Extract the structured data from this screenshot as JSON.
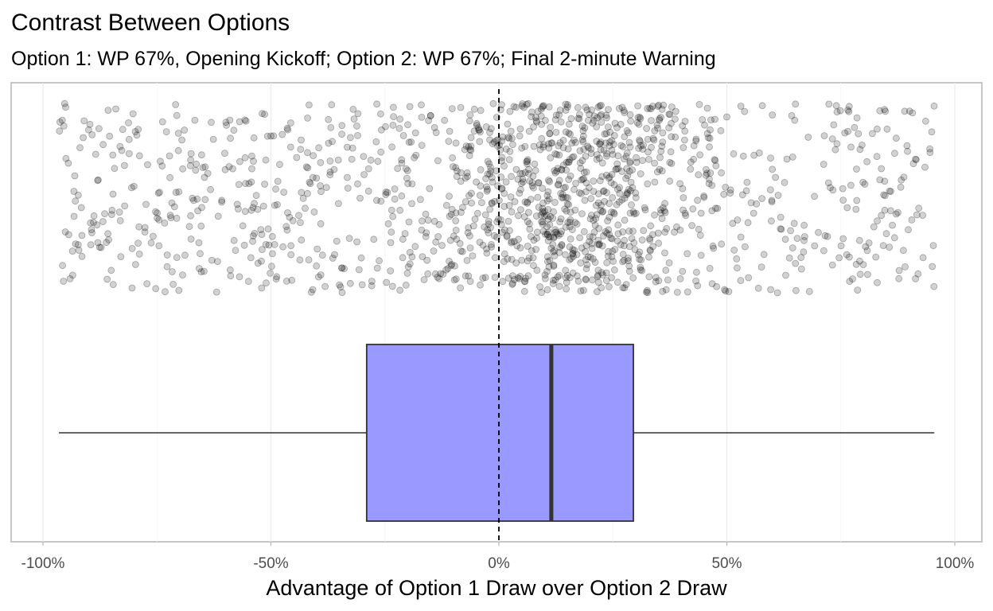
{
  "chart_data": {
    "type": "boxplot",
    "title": "Contrast Between Options",
    "subtitle": "Option 1: WP 67%, Opening Kickoff; Option 2: WP 67%; Final 2-minute Warning",
    "xlabel": "Advantage of Option 1 Draw over Option 2 Draw",
    "ylabel": "",
    "xlim": [
      -1.05,
      1.05
    ],
    "x_ticks": [
      -1.0,
      -0.5,
      0.0,
      0.5,
      1.0
    ],
    "x_tick_labels": [
      "-100%",
      "-50%",
      "0%",
      "50%",
      "100%"
    ],
    "reference_line": {
      "x": 0.0,
      "style": "dashed",
      "color": "#000000"
    },
    "box": {
      "whisker_low": -0.965,
      "q1": -0.29,
      "median": 0.115,
      "q3": 0.295,
      "whisker_high": 0.955,
      "fill": "#9999ff",
      "stroke": "#333333"
    },
    "jitter": {
      "count": 1500,
      "x_range": [
        -0.965,
        0.955
      ],
      "mode_near": 0.15,
      "point_color": "#000000",
      "point_alpha": 0.18
    },
    "grid": true,
    "legend": "none"
  }
}
